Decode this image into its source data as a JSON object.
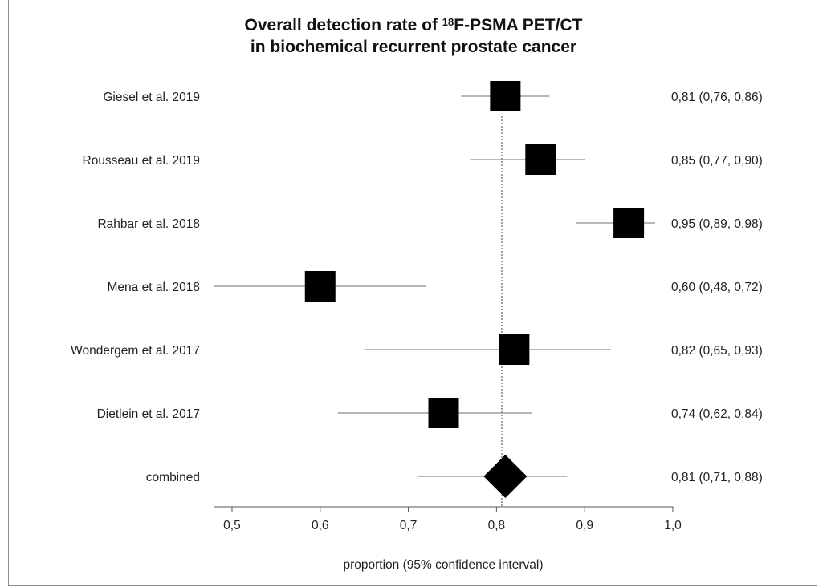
{
  "title": {
    "line1_prefix": "Overall detection rate of ",
    "line1_superscript": "18",
    "line1_suffix": "F-PSMA PET/CT",
    "line2": "in biochemical recurrent prostate cancer"
  },
  "chart_data": {
    "type": "forest",
    "title": "Overall detection rate of 18F-PSMA PET/CT in biochemical recurrent prostate cancer",
    "xlabel": "proportion (95% confidence interval)",
    "xlim": [
      0.48,
      1.0
    ],
    "xticks": [
      0.5,
      0.6,
      0.7,
      0.8,
      0.9,
      1.0
    ],
    "xtick_labels": [
      "0,5",
      "0,6",
      "0,7",
      "0,8",
      "0,9",
      "1,0"
    ],
    "reference_line": 0.806,
    "studies": [
      {
        "label": "Giesel et al. 2019",
        "estimate": 0.81,
        "lower": 0.76,
        "upper": 0.86,
        "ci_text": "0,81 (0,76, 0,86)",
        "marker": "square"
      },
      {
        "label": "Rousseau et al. 2019",
        "estimate": 0.85,
        "lower": 0.77,
        "upper": 0.9,
        "ci_text": "0,85 (0,77, 0,90)",
        "marker": "square"
      },
      {
        "label": "Rahbar et al. 2018",
        "estimate": 0.95,
        "lower": 0.89,
        "upper": 0.98,
        "ci_text": "0,95 (0,89, 0,98)",
        "marker": "square"
      },
      {
        "label": "Mena et al. 2018",
        "estimate": 0.6,
        "lower": 0.48,
        "upper": 0.72,
        "ci_text": "0,60 (0,48, 0,72)",
        "marker": "square"
      },
      {
        "label": "Wondergem et al. 2017",
        "estimate": 0.82,
        "lower": 0.65,
        "upper": 0.93,
        "ci_text": "0,82 (0,65, 0,93)",
        "marker": "square"
      },
      {
        "label": "Dietlein et al. 2017",
        "estimate": 0.74,
        "lower": 0.62,
        "upper": 0.84,
        "ci_text": "0,74 (0,62, 0,84)",
        "marker": "square"
      },
      {
        "label": "combined",
        "estimate": 0.81,
        "lower": 0.71,
        "upper": 0.88,
        "ci_text": "0,81 (0,71, 0,88)",
        "marker": "diamond"
      }
    ],
    "colors": {
      "marker": "#000000",
      "ci_line": "#8a8a8a",
      "axis": "#555555",
      "reference": "#444444"
    }
  }
}
